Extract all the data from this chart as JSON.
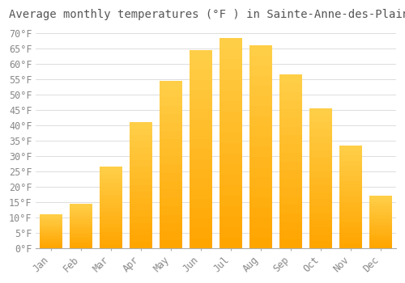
{
  "title": "Average monthly temperatures (°F ) in Sainte-Anne-des-Plaines",
  "months": [
    "Jan",
    "Feb",
    "Mar",
    "Apr",
    "May",
    "Jun",
    "Jul",
    "Aug",
    "Sep",
    "Oct",
    "Nov",
    "Dec"
  ],
  "values": [
    11,
    14.5,
    26.5,
    41,
    54.5,
    64.5,
    68.5,
    66,
    56.5,
    45.5,
    33.5,
    17
  ],
  "bar_color_bottom": "#FFA500",
  "bar_color_top": "#FFD04B",
  "background_color": "#FFFFFF",
  "grid_color": "#DDDDDD",
  "ylim": [
    0,
    72
  ],
  "yticks": [
    0,
    5,
    10,
    15,
    20,
    25,
    30,
    35,
    40,
    45,
    50,
    55,
    60,
    65,
    70
  ],
  "title_fontsize": 10,
  "tick_fontsize": 8.5,
  "font_family": "monospace",
  "tick_color": "#888888",
  "title_color": "#555555"
}
